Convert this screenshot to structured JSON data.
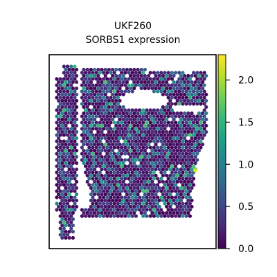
{
  "chart_data": {
    "type": "scatter",
    "subtype": "spatial-spot-map",
    "title_lines": [
      "UKF260",
      "SORBS1 expression"
    ],
    "xlabel": "",
    "ylabel": "",
    "grid": false,
    "colorbar": {
      "colormap": "viridis",
      "range": [
        0.0,
        2.3
      ],
      "ticks": [
        0.0,
        0.5,
        1.0,
        1.5,
        2.0
      ],
      "tick_labels": [
        "0.0",
        "0.5",
        "1.0",
        "1.5",
        "2.0"
      ],
      "placement": "right"
    },
    "colormap_stops": [
      "#440154",
      "#482878",
      "#3e4989",
      "#31688e",
      "#26828e",
      "#1f9e89",
      "#35b779",
      "#6ece58",
      "#b5de2b",
      "#fde725"
    ],
    "spot_value_distribution": "mostly 0.0-0.6, scattered spots 0.8-1.6, one spot ~2.2",
    "max_spot_value": 2.2
  }
}
